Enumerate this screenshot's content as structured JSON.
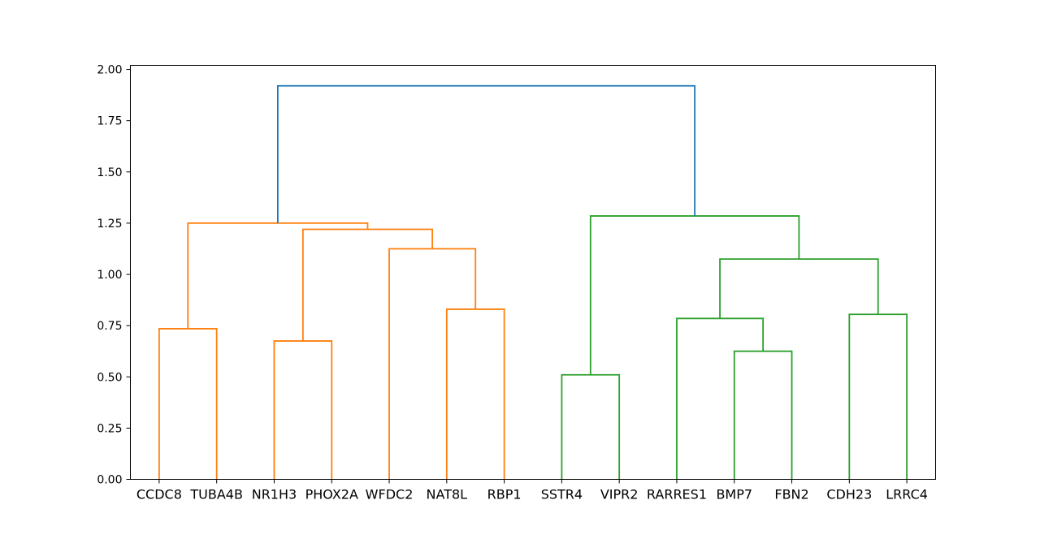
{
  "chart_data": {
    "type": "dendrogram",
    "title": "",
    "xlabel": "",
    "ylabel": "",
    "ylim": [
      0,
      2.02
    ],
    "yticks": [
      0.0,
      0.25,
      0.5,
      0.75,
      1.0,
      1.25,
      1.5,
      1.75,
      2.0
    ],
    "ytick_labels": [
      "0.00",
      "0.25",
      "0.50",
      "0.75",
      "1.00",
      "1.25",
      "1.50",
      "1.75",
      "2.00"
    ],
    "leaves": [
      "CCDC8",
      "TUBA4B",
      "NR1H3",
      "PHOX2A",
      "WFDC2",
      "NAT8L",
      "RBP1",
      "SSTR4",
      "VIPR2",
      "RARRES1",
      "BMP7",
      "FBN2",
      "CDH23",
      "LRRC4"
    ],
    "colors": {
      "cluster_1": "#ff7f0e",
      "cluster_2": "#2ca02c",
      "above_threshold": "#1f77b4"
    },
    "merges": [
      {
        "left": 0,
        "right": 1,
        "height": 0.735,
        "color": "cluster_1"
      },
      {
        "left": 2,
        "right": 3,
        "height": 0.675,
        "color": "cluster_1"
      },
      {
        "left": 5,
        "right": 6,
        "height": 0.83,
        "color": "cluster_1"
      },
      {
        "left": 4,
        "right": "m2",
        "height": 1.125,
        "color": "cluster_1"
      },
      {
        "left": "m1",
        "right": "m3",
        "height": 1.22,
        "color": "cluster_1"
      },
      {
        "left": "m0",
        "right": "m4",
        "height": 1.25,
        "color": "cluster_1"
      },
      {
        "left": 7,
        "right": 8,
        "height": 0.51,
        "color": "cluster_2"
      },
      {
        "left": 10,
        "right": 11,
        "height": 0.625,
        "color": "cluster_2"
      },
      {
        "left": 9,
        "right": "m7",
        "height": 0.785,
        "color": "cluster_2"
      },
      {
        "left": 12,
        "right": 13,
        "height": 0.805,
        "color": "cluster_2"
      },
      {
        "left": "m8",
        "right": "m9",
        "height": 1.075,
        "color": "cluster_2"
      },
      {
        "left": "m6",
        "right": "m10",
        "height": 1.285,
        "color": "cluster_2"
      },
      {
        "left": "m5",
        "right": "m11",
        "height": 1.92,
        "color": "above_threshold"
      }
    ]
  }
}
